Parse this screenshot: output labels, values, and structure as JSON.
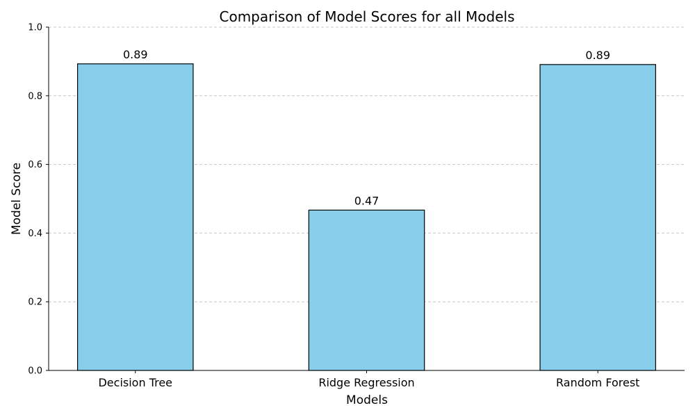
{
  "chart_data": {
    "type": "bar",
    "title": "Comparison of Model Scores for all Models",
    "xlabel": "Models",
    "ylabel": "Model Score",
    "categories": [
      "Decision Tree",
      "Ridge Regression",
      "Random Forest"
    ],
    "values": [
      0.893,
      0.467,
      0.891
    ],
    "data_labels": [
      "0.89",
      "0.47",
      "0.89"
    ],
    "ylim": [
      0,
      1.0
    ],
    "yticks": [
      0.0,
      0.2,
      0.4,
      0.6,
      0.8,
      1.0
    ],
    "ytick_labels": [
      "0.0",
      "0.2",
      "0.4",
      "0.6",
      "0.8",
      "1.0"
    ],
    "grid": "y-dashed",
    "bar_color": "#87CEEB",
    "bar_edge_color": "#000000",
    "grid_color": "#c8c8c8"
  }
}
